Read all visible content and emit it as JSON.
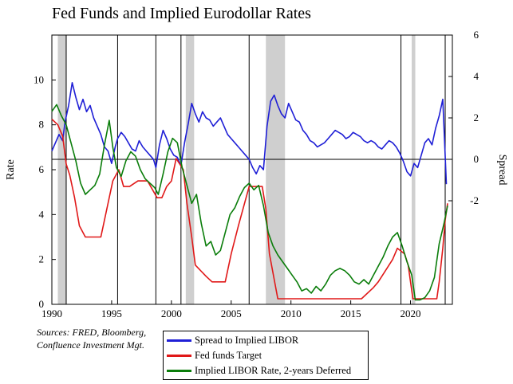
{
  "chart_data": {
    "type": "line",
    "title": "Fed Funds and Implied Eurodollar Rates",
    "left_axis": {
      "label": "Rate",
      "ylim": [
        0,
        12
      ],
      "ticks": [
        0,
        2,
        4,
        6,
        8,
        10
      ]
    },
    "right_axis": {
      "label": "Spread",
      "ylim": [
        -7,
        6
      ],
      "ticks": [
        -2,
        0,
        2,
        4,
        6
      ],
      "tick_labels": [
        "-2",
        "0",
        "2",
        "4",
        "6"
      ]
    },
    "x_axis": {
      "xlim": [
        1990,
        2023.5
      ],
      "ticks": [
        1990,
        1995,
        2000,
        2005,
        2010,
        2015,
        2020
      ]
    },
    "recessions": [
      [
        1990.5,
        1991.2
      ],
      [
        2001.2,
        2001.9
      ],
      [
        2007.9,
        2009.5
      ],
      [
        2020.1,
        2020.4
      ]
    ],
    "vertical_lines": [
      1991.2,
      1995.5,
      1998.7,
      2000.8,
      2006.5,
      2019.2,
      2022.9
    ],
    "zero_line_right": 0,
    "grid": false,
    "legend_position": "bottom-center",
    "series": [
      {
        "name": "Spread to Implied LIBOR",
        "axis": "right",
        "color": "#1f1fd6",
        "x": [
          1990.0,
          1990.3,
          1990.6,
          1990.9,
          1991.1,
          1991.4,
          1991.7,
          1992.0,
          1992.3,
          1992.6,
          1992.9,
          1993.2,
          1993.5,
          1993.8,
          1994.1,
          1994.4,
          1994.7,
          1995.0,
          1995.3,
          1995.5,
          1995.8,
          1996.1,
          1996.4,
          1996.7,
          1997.0,
          1997.3,
          1997.6,
          1997.9,
          1998.2,
          1998.5,
          1998.7,
          1999.0,
          1999.3,
          1999.6,
          1999.9,
          2000.2,
          2000.5,
          2000.8,
          2001.1,
          2001.4,
          2001.7,
          2002.0,
          2002.3,
          2002.6,
          2002.9,
          2003.2,
          2003.5,
          2003.8,
          2004.1,
          2004.4,
          2004.7,
          2005.0,
          2005.3,
          2005.6,
          2005.9,
          2006.2,
          2006.5,
          2006.8,
          2007.1,
          2007.4,
          2007.7,
          2008.0,
          2008.3,
          2008.6,
          2008.9,
          2009.2,
          2009.5,
          2009.8,
          2010.1,
          2010.4,
          2010.7,
          2011.0,
          2011.3,
          2011.6,
          2011.9,
          2012.2,
          2012.5,
          2012.8,
          2013.1,
          2013.4,
          2013.7,
          2014.0,
          2014.3,
          2014.6,
          2014.9,
          2015.2,
          2015.5,
          2015.8,
          2016.1,
          2016.4,
          2016.7,
          2017.0,
          2017.3,
          2017.6,
          2017.9,
          2018.2,
          2018.5,
          2018.8,
          2019.1,
          2019.4,
          2019.7,
          2020.0,
          2020.3,
          2020.6,
          2020.9,
          2021.2,
          2021.5,
          2021.8,
          2022.1,
          2022.4,
          2022.7,
          2023.0
        ],
        "values": [
          0.4,
          0.8,
          1.2,
          0.9,
          1.8,
          2.6,
          3.7,
          3.0,
          2.4,
          2.9,
          2.3,
          2.6,
          2.0,
          1.6,
          1.2,
          0.6,
          0.4,
          -0.2,
          0.6,
          1.0,
          1.3,
          1.1,
          0.8,
          0.5,
          0.4,
          0.9,
          0.6,
          0.4,
          0.2,
          0.0,
          -0.4,
          0.7,
          1.4,
          1.0,
          0.5,
          0.2,
          0.1,
          -0.3,
          0.8,
          1.7,
          2.7,
          2.2,
          1.8,
          2.3,
          2.0,
          1.9,
          1.6,
          1.8,
          2.0,
          1.6,
          1.2,
          1.0,
          0.8,
          0.6,
          0.4,
          0.2,
          0.0,
          -0.4,
          -0.7,
          -0.3,
          -0.5,
          1.6,
          2.8,
          3.1,
          2.6,
          2.2,
          2.0,
          2.7,
          2.3,
          1.9,
          1.8,
          1.4,
          1.2,
          0.9,
          0.8,
          0.6,
          0.7,
          0.8,
          1.0,
          1.2,
          1.4,
          1.3,
          1.2,
          1.0,
          1.1,
          1.3,
          1.2,
          1.1,
          0.9,
          0.8,
          0.9,
          0.8,
          0.6,
          0.5,
          0.7,
          0.9,
          0.8,
          0.6,
          0.3,
          -0.1,
          -0.6,
          -0.8,
          -0.2,
          -0.4,
          0.2,
          0.8,
          1.0,
          0.7,
          1.5,
          2.1,
          2.9,
          -1.2
        ]
      },
      {
        "name": "Fed funds Target",
        "axis": "left",
        "color": "#e01818",
        "x": [
          1990.0,
          1990.5,
          1990.9,
          1991.2,
          1991.5,
          1991.9,
          1992.3,
          1992.8,
          1993.5,
          1994.1,
          1994.4,
          1994.8,
          1995.1,
          1995.6,
          1996.0,
          1996.5,
          1997.2,
          1998.0,
          1998.8,
          1999.2,
          1999.6,
          2000.0,
          2000.4,
          2001.0,
          2001.3,
          2001.7,
          2002.0,
          2002.9,
          2003.4,
          2004.5,
          2005.0,
          2005.6,
          2006.5,
          2007.6,
          2007.9,
          2008.2,
          2008.9,
          2012.0,
          2015.9,
          2016.9,
          2017.3,
          2017.9,
          2018.5,
          2018.9,
          2019.5,
          2019.8,
          2020.2,
          2021.5,
          2022.2,
          2022.4,
          2022.7,
          2022.9,
          2023.1
        ],
        "values": [
          8.25,
          8.0,
          7.5,
          6.25,
          5.75,
          4.75,
          3.5,
          3.0,
          3.0,
          3.0,
          3.75,
          4.75,
          5.5,
          6.0,
          5.25,
          5.25,
          5.5,
          5.5,
          4.75,
          4.75,
          5.25,
          5.5,
          6.5,
          6.0,
          4.5,
          3.0,
          1.75,
          1.25,
          1.0,
          1.0,
          2.25,
          3.5,
          5.25,
          5.25,
          4.25,
          2.25,
          0.25,
          0.25,
          0.25,
          0.75,
          1.0,
          1.5,
          2.0,
          2.5,
          2.25,
          1.75,
          0.25,
          0.25,
          0.25,
          1.0,
          2.5,
          3.75,
          4.5
        ]
      },
      {
        "name": "Implied LIBOR Rate, 2-years Deferred",
        "axis": "left",
        "color": "#0a7d0a",
        "x": [
          1990.0,
          1990.4,
          1990.8,
          1991.2,
          1991.6,
          1992.0,
          1992.4,
          1992.8,
          1993.2,
          1993.6,
          1994.0,
          1994.4,
          1994.8,
          1995.1,
          1995.4,
          1995.8,
          1996.2,
          1996.6,
          1997.0,
          1997.4,
          1997.8,
          1998.2,
          1998.6,
          1998.9,
          1999.3,
          1999.7,
          2000.1,
          2000.5,
          2000.9,
          2001.3,
          2001.7,
          2002.1,
          2002.5,
          2002.9,
          2003.3,
          2003.7,
          2004.1,
          2004.5,
          2004.9,
          2005.3,
          2005.7,
          2006.1,
          2006.5,
          2006.9,
          2007.3,
          2007.7,
          2008.1,
          2008.5,
          2008.9,
          2009.3,
          2009.7,
          2010.1,
          2010.5,
          2010.9,
          2011.3,
          2011.7,
          2012.1,
          2012.5,
          2012.9,
          2013.3,
          2013.7,
          2014.1,
          2014.5,
          2014.9,
          2015.3,
          2015.7,
          2016.1,
          2016.5,
          2016.9,
          2017.3,
          2017.7,
          2018.1,
          2018.5,
          2018.9,
          2019.3,
          2019.7,
          2020.1,
          2020.4,
          2020.8,
          2021.2,
          2021.6,
          2022.0,
          2022.4,
          2022.8,
          2023.1
        ],
        "values": [
          8.6,
          8.9,
          8.4,
          8.0,
          7.2,
          6.4,
          5.4,
          4.9,
          5.1,
          5.3,
          5.8,
          7.1,
          8.2,
          7.0,
          6.1,
          5.7,
          6.4,
          6.8,
          6.6,
          6.0,
          5.6,
          5.4,
          5.2,
          4.9,
          5.8,
          6.8,
          7.4,
          7.2,
          6.1,
          5.3,
          4.5,
          4.9,
          3.6,
          2.6,
          2.8,
          2.2,
          2.4,
          3.2,
          4.0,
          4.3,
          4.8,
          5.2,
          5.4,
          5.1,
          5.3,
          4.4,
          3.2,
          2.6,
          2.2,
          1.9,
          1.6,
          1.3,
          1.0,
          0.6,
          0.7,
          0.5,
          0.8,
          0.6,
          0.9,
          1.3,
          1.5,
          1.6,
          1.5,
          1.3,
          1.0,
          0.9,
          1.1,
          0.9,
          1.3,
          1.7,
          2.1,
          2.6,
          3.0,
          3.2,
          2.6,
          1.9,
          1.3,
          0.2,
          0.2,
          0.3,
          0.6,
          1.2,
          2.7,
          3.6,
          4.4
        ]
      }
    ]
  },
  "sources": {
    "line1": "Sources:  FRED, Bloomberg,",
    "line2": "Confluence Investment Mgt."
  }
}
